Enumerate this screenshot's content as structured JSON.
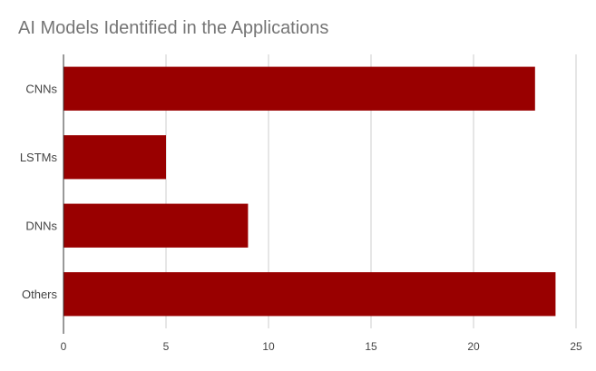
{
  "chart_data": {
    "type": "bar",
    "orientation": "horizontal",
    "title": "AI Models Identified in the Applications",
    "categories": [
      "CNNs",
      "LSTMs",
      "DNNs",
      "Others"
    ],
    "values": [
      23,
      5,
      9,
      24
    ],
    "xlim": [
      0,
      25
    ],
    "xticks": [
      0,
      5,
      10,
      15,
      20,
      25
    ],
    "grid": true,
    "bar_color": "#990000",
    "grid_color": "#cccccc",
    "axis_color": "#333333"
  }
}
